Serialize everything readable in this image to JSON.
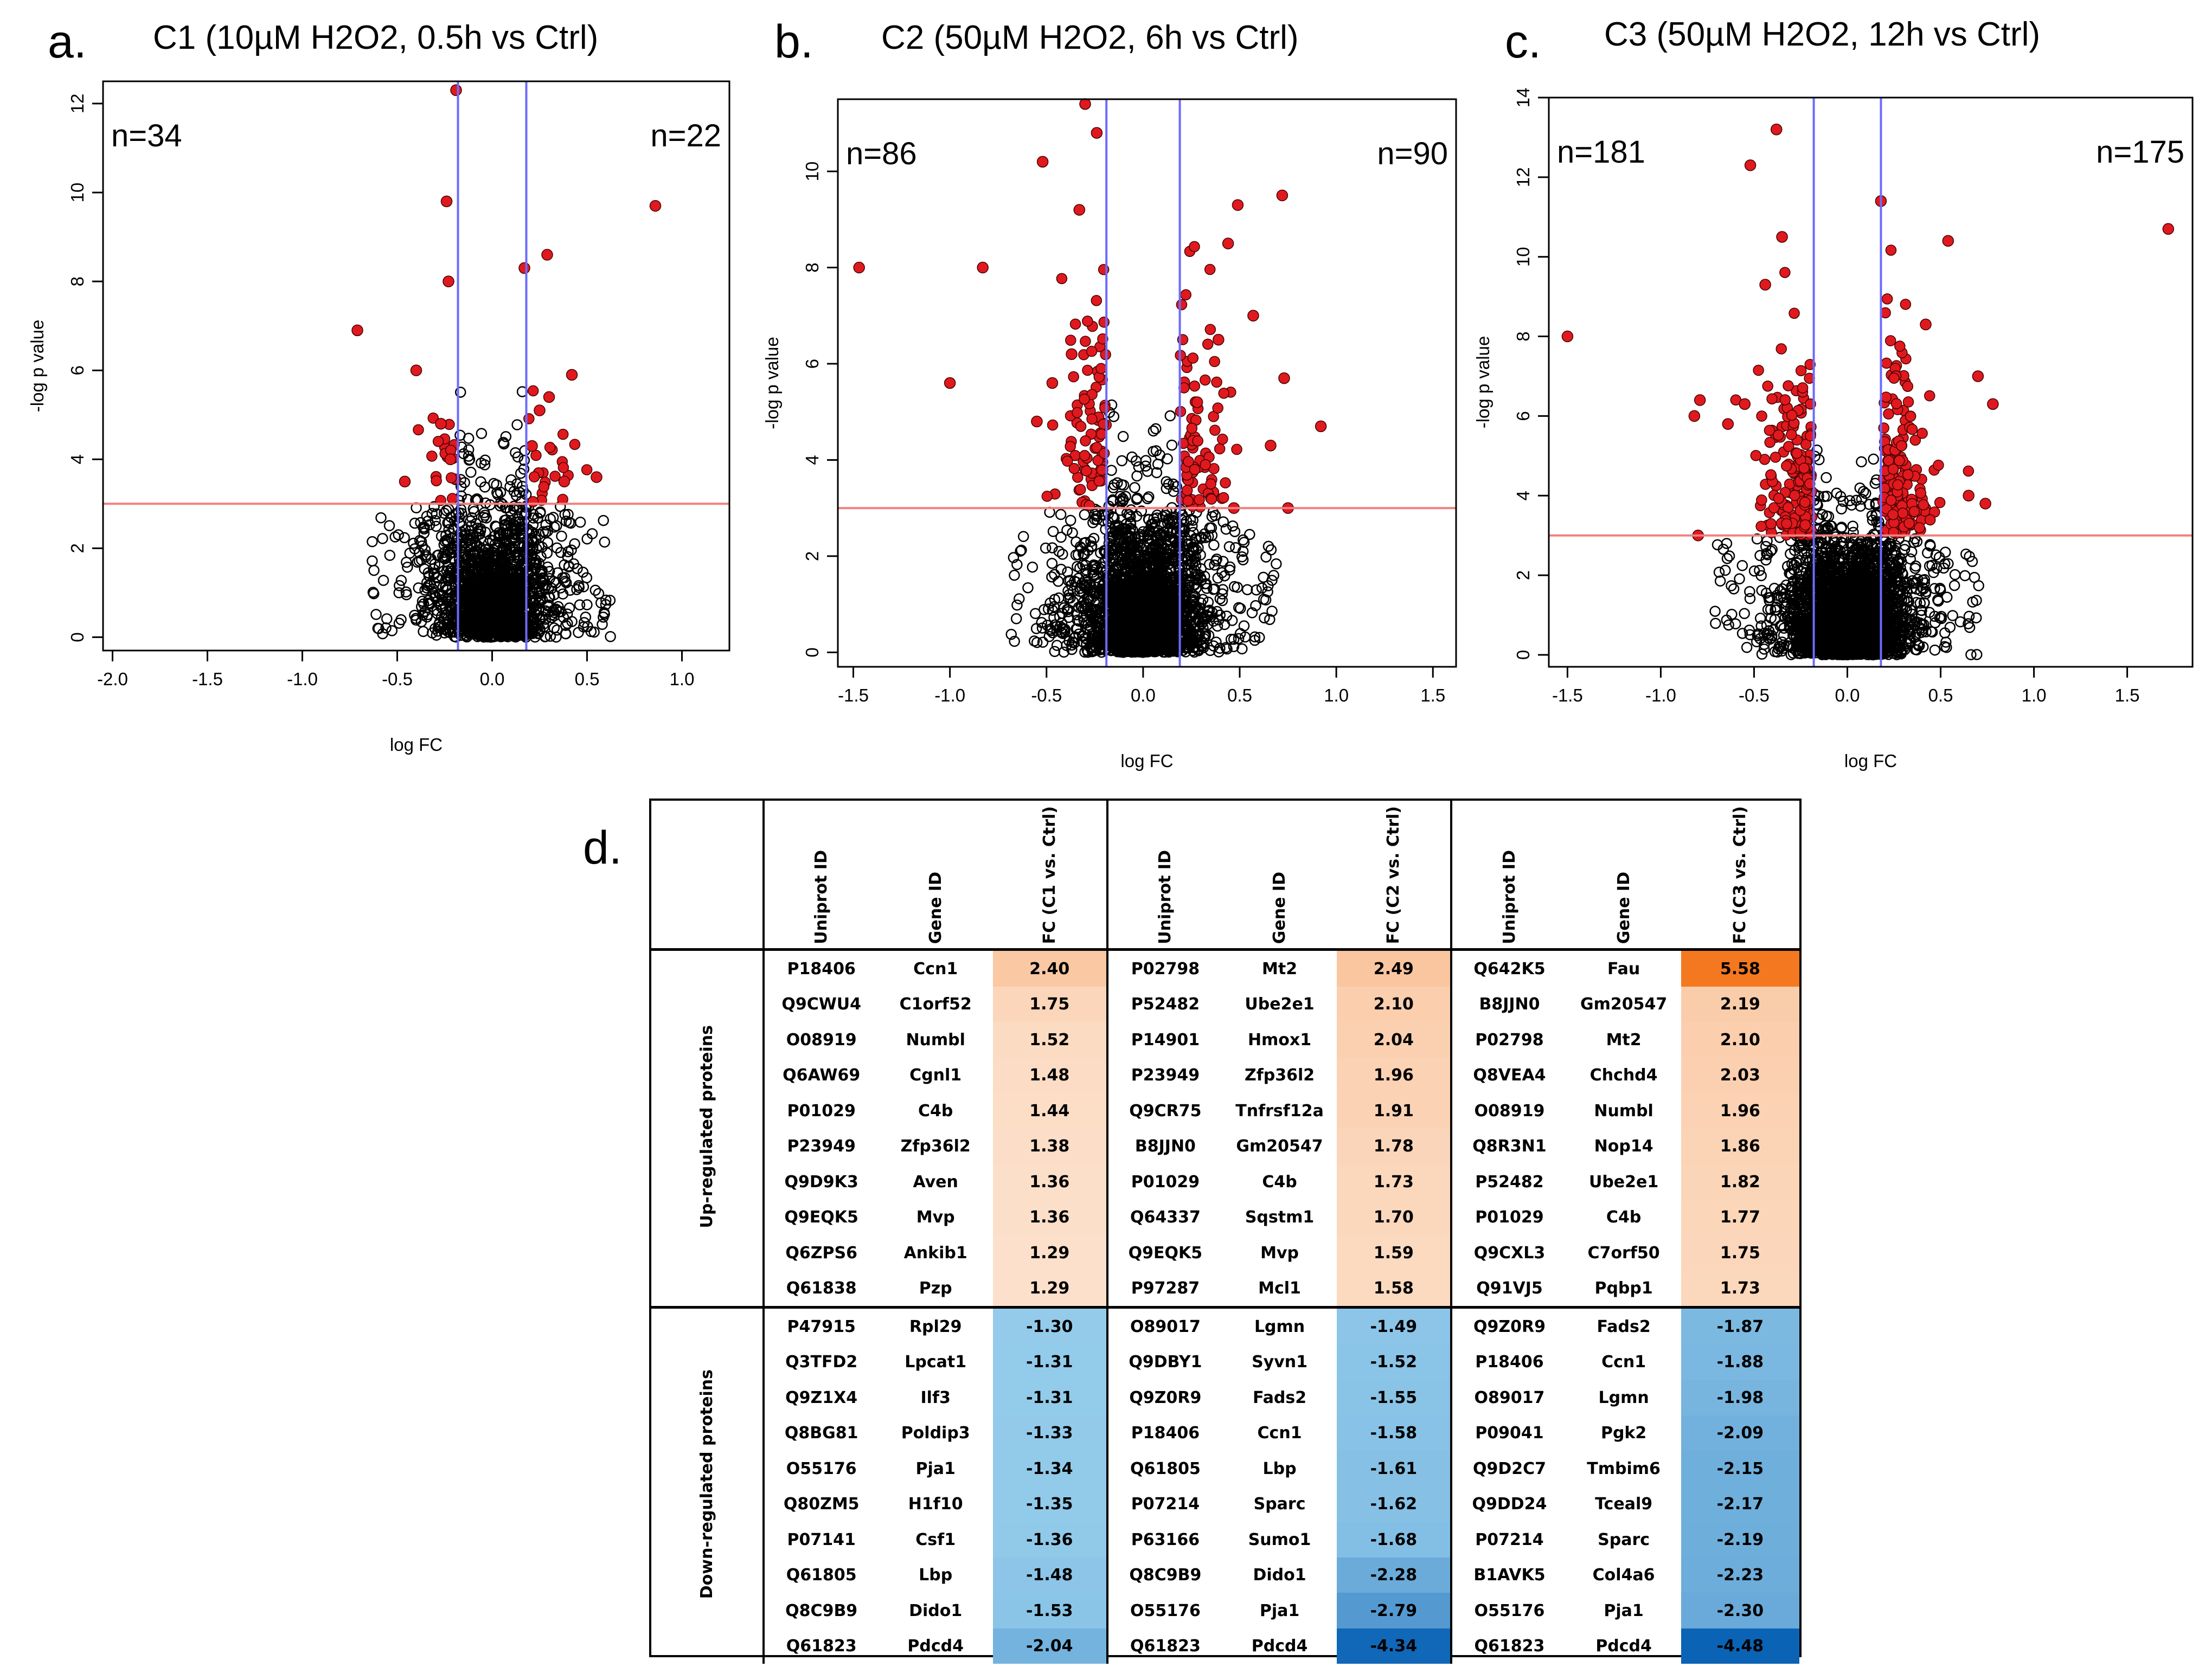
{
  "colors": {
    "open_point": "#000000",
    "sig_point": "#e0191e",
    "threshold_h": "#f08080",
    "threshold_v": "#6b6bff",
    "up_strong": "#f4781e",
    "down_strong": "#0a62b5"
  },
  "panels": [
    {
      "letter": "a.",
      "title": "C1 (10µM H2O2, 0.5h vs Ctrl)",
      "n_left": "n=34",
      "n_right": "n=22"
    },
    {
      "letter": "b.",
      "title": "C2 (50µM H2O2, 6h vs Ctrl)",
      "n_left": "n=86",
      "n_right": "n=90"
    },
    {
      "letter": "c.",
      "title": "C3 (50µM H2O2, 12h vs Ctrl)",
      "n_left": "n=181",
      "n_right": "n=175"
    }
  ],
  "table": {
    "letter": "d.",
    "headers": [
      "Uniprot ID",
      "Gene ID",
      "FC (C1 vs. Ctrl)",
      "Uniprot ID",
      "Gene ID",
      "FC (C2 vs. Ctrl)",
      "Uniprot ID",
      "Gene ID",
      "FC (C3 vs. Ctrl)"
    ],
    "group_up": "Up-regulated proteins",
    "group_down": "Down-regulated proteins",
    "up_rows": [
      [
        "P18406",
        "Ccn1",
        "2.40",
        "P02798",
        "Mt2",
        "2.49",
        "Q642K5",
        "Fau",
        "5.58"
      ],
      [
        "Q9CWU4",
        "C1orf52",
        "1.75",
        "P52482",
        "Ube2e1",
        "2.10",
        "B8JJN0",
        "Gm20547",
        "2.19"
      ],
      [
        "O08919",
        "Numbl",
        "1.52",
        "P14901",
        "Hmox1",
        "2.04",
        "P02798",
        "Mt2",
        "2.10"
      ],
      [
        "Q6AW69",
        "Cgnl1",
        "1.48",
        "P23949",
        "Zfp36l2",
        "1.96",
        "Q8VEA4",
        "Chchd4",
        "2.03"
      ],
      [
        "P01029",
        "C4b",
        "1.44",
        "Q9CR75",
        "Tnfrsf12a",
        "1.91",
        "O08919",
        "Numbl",
        "1.96"
      ],
      [
        "P23949",
        "Zfp36l2",
        "1.38",
        "B8JJN0",
        "Gm20547",
        "1.78",
        "Q8R3N1",
        "Nop14",
        "1.86"
      ],
      [
        "Q9D9K3",
        "Aven",
        "1.36",
        "P01029",
        "C4b",
        "1.73",
        "P52482",
        "Ube2e1",
        "1.82"
      ],
      [
        "Q9EQK5",
        "Mvp",
        "1.36",
        "Q64337",
        "Sqstm1",
        "1.70",
        "P01029",
        "C4b",
        "1.77"
      ],
      [
        "Q6ZPS6",
        "Ankib1",
        "1.29",
        "Q9EQK5",
        "Mvp",
        "1.59",
        "Q9CXL3",
        "C7orf50",
        "1.75"
      ],
      [
        "Q61838",
        "Pzp",
        "1.29",
        "P97287",
        "Mcl1",
        "1.58",
        "Q91VJ5",
        "Pqbp1",
        "1.73"
      ]
    ],
    "down_rows": [
      [
        "P47915",
        "Rpl29",
        "-1.30",
        "O89017",
        "Lgmn",
        "-1.49",
        "Q9Z0R9",
        "Fads2",
        "-1.87"
      ],
      [
        "Q3TFD2",
        "Lpcat1",
        "-1.31",
        "Q9DBY1",
        "Syvn1",
        "-1.52",
        "P18406",
        "Ccn1",
        "-1.88"
      ],
      [
        "Q9Z1X4",
        "Ilf3",
        "-1.31",
        "Q9Z0R9",
        "Fads2",
        "-1.55",
        "O89017",
        "Lgmn",
        "-1.98"
      ],
      [
        "Q8BG81",
        "Poldip3",
        "-1.33",
        "P18406",
        "Ccn1",
        "-1.58",
        "P09041",
        "Pgk2",
        "-2.09"
      ],
      [
        "O55176",
        "Pja1",
        "-1.34",
        "Q61805",
        "Lbp",
        "-1.61",
        "Q9D2C7",
        "Tmbim6",
        "-2.15"
      ],
      [
        "Q80ZM5",
        "H1f10",
        "-1.35",
        "P07214",
        "Sparc",
        "-1.62",
        "Q9DD24",
        "Tceal9",
        "-2.17"
      ],
      [
        "P07141",
        "Csf1",
        "-1.36",
        "P63166",
        "Sumo1",
        "-1.68",
        "P07214",
        "Sparc",
        "-2.19"
      ],
      [
        "Q61805",
        "Lbp",
        "-1.48",
        "Q8C9B9",
        "Dido1",
        "-2.28",
        "B1AVK5",
        "Col4a6",
        "-2.23"
      ],
      [
        "Q8C9B9",
        "Dido1",
        "-1.53",
        "O55176",
        "Pja1",
        "-2.79",
        "O55176",
        "Pja1",
        "-2.30"
      ],
      [
        "Q61823",
        "Pdcd4",
        "-2.04",
        "Q61823",
        "Pdcd4",
        "-4.34",
        "Q61823",
        "Pdcd4",
        "-4.48"
      ]
    ]
  },
  "chart_data": [
    {
      "type": "scatter",
      "title": "C1 (10µM H2O2, 0.5h vs Ctrl)",
      "xlabel": "log FC",
      "ylabel": "-log p value",
      "xlim": [
        -2.05,
        1.25
      ],
      "ylim": [
        -0.3,
        12.5
      ],
      "xticks": [
        -2.0,
        -1.5,
        -1.0,
        -0.5,
        0.0,
        0.5,
        1.0
      ],
      "xtick_labels": [
        "-2.0",
        "-1.5",
        "-1.0",
        "-0.5",
        "0.0",
        "0.5",
        "1.0"
      ],
      "yticks": [
        0,
        2,
        4,
        6,
        8,
        10,
        12
      ],
      "ytick_labels": [
        "0",
        "2",
        "4",
        "6",
        "8",
        "10",
        "12"
      ],
      "hline": 3.0,
      "vlines": [
        -0.18,
        0.18
      ],
      "annotations": [
        "n=34",
        "n=22"
      ],
      "significant_points": [
        [
          -0.71,
          6.9
        ],
        [
          -0.19,
          12.3
        ],
        [
          -0.24,
          9.8
        ],
        [
          0.86,
          9.7
        ],
        [
          0.29,
          8.6
        ],
        [
          0.17,
          8.3
        ],
        [
          -0.23,
          8.0
        ],
        [
          -0.4,
          6.0
        ],
        [
          0.42,
          5.9
        ],
        [
          0.3,
          5.4
        ],
        [
          0.55,
          3.6
        ],
        [
          -0.46,
          3.5
        ],
        [
          0.38,
          3.5
        ],
        [
          -0.27,
          4.8
        ],
        [
          0.25,
          5.1
        ],
        [
          0.21,
          4.3
        ],
        [
          -0.22,
          4.0
        ]
      ],
      "ns_spread": 0.55,
      "ns_ymax": 9.0,
      "ns_count": 1700
    },
    {
      "type": "scatter",
      "title": "C2 (50µM H2O2, 6h vs Ctrl)",
      "xlabel": "log FC",
      "ylabel": "-log p value",
      "xlim": [
        -1.58,
        1.62
      ],
      "ylim": [
        -0.3,
        11.5
      ],
      "xticks": [
        -1.5,
        -1.0,
        -0.5,
        0.0,
        0.5,
        1.0,
        1.5
      ],
      "xtick_labels": [
        "-1.5",
        "-1.0",
        "-0.5",
        "0.0",
        "0.5",
        "1.0",
        "1.5"
      ],
      "yticks": [
        0,
        2,
        4,
        6,
        8,
        10
      ],
      "ytick_labels": [
        "0",
        "2",
        "4",
        "6",
        "8",
        "10"
      ],
      "hline": 3.0,
      "vlines": [
        -0.19,
        0.19
      ],
      "annotations": [
        "n=86",
        "n=90"
      ],
      "significant_points": [
        [
          -1.47,
          8.0
        ],
        [
          -0.83,
          8.0
        ],
        [
          -1.0,
          5.6
        ],
        [
          -0.52,
          10.2
        ],
        [
          -0.33,
          9.2
        ],
        [
          -0.3,
          11.4
        ],
        [
          -0.24,
          10.8
        ],
        [
          0.49,
          9.3
        ],
        [
          0.72,
          9.5
        ],
        [
          0.44,
          8.5
        ],
        [
          0.57,
          7.0
        ],
        [
          0.73,
          5.7
        ],
        [
          0.66,
          4.3
        ],
        [
          0.92,
          4.7
        ],
        [
          0.75,
          3.0
        ],
        [
          0.47,
          3.0
        ],
        [
          -0.55,
          4.8
        ],
        [
          -0.47,
          5.6
        ],
        [
          0.39,
          6.5
        ],
        [
          -0.37,
          6.2
        ],
        [
          0.28,
          5.2
        ]
      ],
      "ns_spread": 0.6,
      "ns_ymax": 11.3,
      "ns_count": 2500
    },
    {
      "type": "scatter",
      "title": "C3 (50µM H2O2, 12h vs Ctrl)",
      "xlabel": "log FC",
      "ylabel": "-log p value",
      "xlim": [
        -1.6,
        1.85
      ],
      "ylim": [
        -0.3,
        14.0
      ],
      "xticks": [
        -1.5,
        -1.0,
        -0.5,
        0.0,
        0.5,
        1.0,
        1.5
      ],
      "xtick_labels": [
        "-1.5",
        "-1.0",
        "-0.5",
        "0.0",
        "0.5",
        "1.0",
        "1.5"
      ],
      "yticks": [
        0,
        2,
        4,
        6,
        8,
        10,
        12,
        14
      ],
      "ytick_labels": [
        "0",
        "2",
        "4",
        "6",
        "8",
        "10",
        "12",
        "14"
      ],
      "hline": 3.0,
      "vlines": [
        -0.18,
        0.18
      ],
      "annotations": [
        "n=181",
        "n=175"
      ],
      "significant_points": [
        [
          -1.5,
          8.0
        ],
        [
          -0.52,
          12.3
        ],
        [
          -0.38,
          13.2
        ],
        [
          1.72,
          10.7
        ],
        [
          0.54,
          10.4
        ],
        [
          0.18,
          11.4
        ],
        [
          -0.82,
          6.0
        ],
        [
          -0.79,
          6.4
        ],
        [
          0.78,
          6.3
        ],
        [
          0.7,
          7.0
        ],
        [
          -0.8,
          3.0
        ],
        [
          -0.64,
          5.8
        ],
        [
          -0.55,
          6.3
        ],
        [
          0.65,
          4.0
        ],
        [
          0.74,
          3.8
        ],
        [
          -0.44,
          9.3
        ],
        [
          0.42,
          8.3
        ],
        [
          -0.35,
          10.5
        ]
      ],
      "ns_spread": 0.62,
      "ns_ymax": 13.5,
      "ns_count": 3000
    }
  ]
}
